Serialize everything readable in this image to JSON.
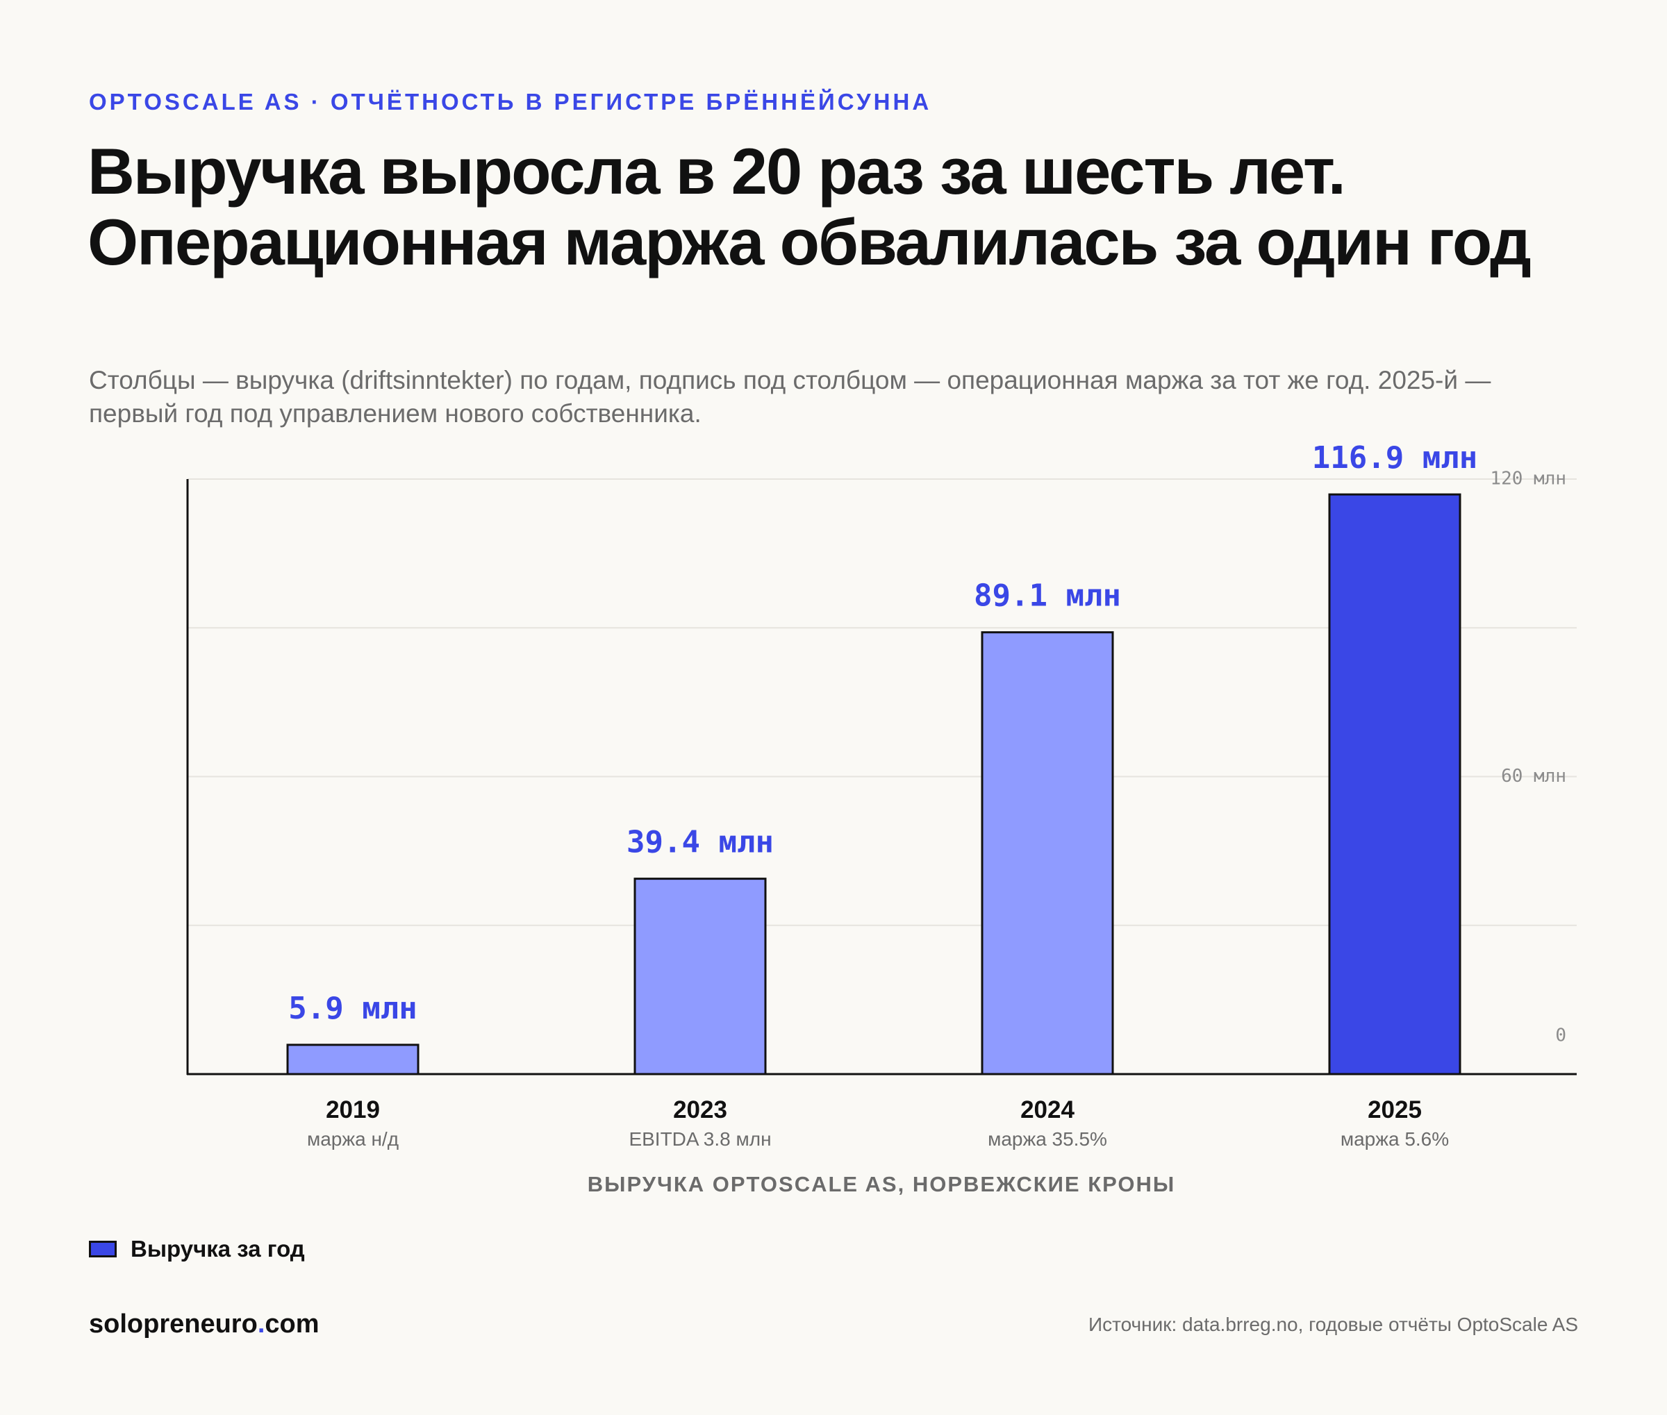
{
  "header": {
    "eyebrow": "OPTOSCALE AS · ОТЧЁТНОСТЬ В РЕГИСТРЕ БРЁННЁЙСУННА",
    "title": "Выручка выросла в 20 раз за шесть лет. Операционная маржа обвалилась за один год",
    "subtitle": "Столбцы — выручка (driftsinntekter) по годам, подпись под столбцом — операционная маржа за тот же год. 2025-й — первый год под управлением нового собственника."
  },
  "chart_data": {
    "type": "bar",
    "categories": [
      "2019",
      "2023",
      "2024",
      "2025"
    ],
    "values": [
      5.9,
      39.4,
      89.1,
      116.9
    ],
    "value_labels": [
      "5.9 млн",
      "39.4 млн",
      "89.1 млн",
      "116.9 млн"
    ],
    "margin_labels": [
      "маржа н/д",
      "EBITDA 3.8 млн",
      "маржа 35.5%",
      "маржа 5.6%"
    ],
    "highlight_index": 3,
    "xlabel": "ВЫРУЧКА OPTOSCALE AS, НОРВЕЖСКИЕ КРОНЫ",
    "ylim": [
      0,
      125
    ],
    "yticks": [
      0,
      60,
      120
    ],
    "ytick_labels": [
      "0",
      "60 млн",
      "120 млн"
    ],
    "gridlines": [
      30,
      60,
      90,
      120
    ],
    "grid": true,
    "legend": {
      "position": "bottom-left",
      "label": "Выручка за год"
    },
    "colors": {
      "bar": "#8f9bff",
      "highlight": "#3a47e6",
      "outline": "#111111",
      "grid": "#e6e4de"
    }
  },
  "footer": {
    "brand_main": "solopreneuro",
    "brand_dot": ".",
    "brand_tld": "com",
    "source": "Источник: data.brreg.no, годовые отчёты OptoScale AS"
  }
}
